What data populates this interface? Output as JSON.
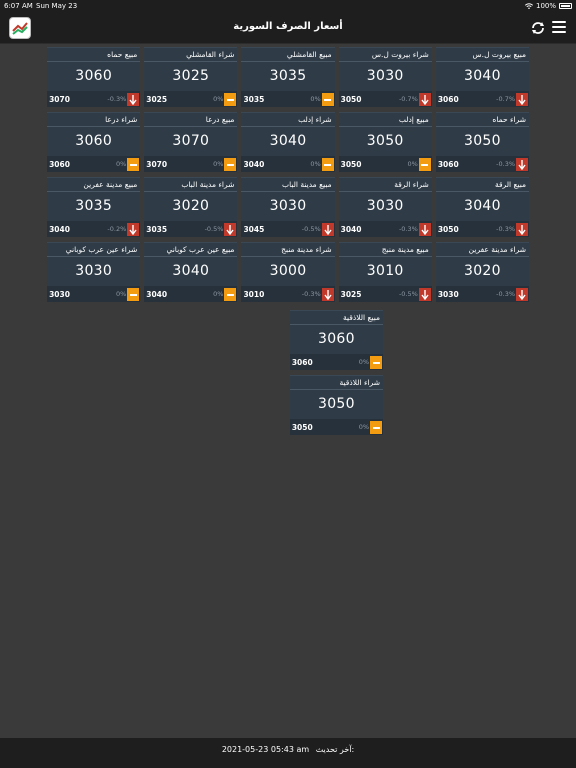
{
  "status": {
    "time": "6:07 AM",
    "date": "Sun May 23",
    "battery": "100%"
  },
  "nav": {
    "title": "أسعار الصرف السورية"
  },
  "colors": {
    "down": "#c0392b",
    "flat": "#f39c12",
    "card": "#2f3c48"
  },
  "icons": {
    "menu": "hamburger-menu-icon",
    "refresh": "refresh-icon",
    "logo": "app-logo-icon"
  },
  "cards": [
    {
      "label": "مبيع بيروت ل.س",
      "price": "3040",
      "old": "3060",
      "pct": "-0.7%",
      "trend": "down"
    },
    {
      "label": "شراء بيروت ل.س",
      "price": "3030",
      "old": "3050",
      "pct": "-0.7%",
      "trend": "down"
    },
    {
      "label": "مبيع القامشلي",
      "price": "3035",
      "old": "3035",
      "pct": "0%",
      "trend": "flat"
    },
    {
      "label": "شراء القامشلي",
      "price": "3025",
      "old": "3025",
      "pct": "0%",
      "trend": "flat"
    },
    {
      "label": "مبيع حماه",
      "price": "3060",
      "old": "3070",
      "pct": "-0.3%",
      "trend": "down"
    },
    {
      "label": "شراء حماه",
      "price": "3050",
      "old": "3060",
      "pct": "-0.3%",
      "trend": "down"
    },
    {
      "label": "مبيع إدلب",
      "price": "3050",
      "old": "3050",
      "pct": "0%",
      "trend": "flat"
    },
    {
      "label": "شراء إدلب",
      "price": "3040",
      "old": "3040",
      "pct": "0%",
      "trend": "flat"
    },
    {
      "label": "مبيع درعا",
      "price": "3070",
      "old": "3070",
      "pct": "0%",
      "trend": "flat"
    },
    {
      "label": "شراء درعا",
      "price": "3060",
      "old": "3060",
      "pct": "0%",
      "trend": "flat"
    },
    {
      "label": "مبيع الرقة",
      "price": "3040",
      "old": "3050",
      "pct": "-0.3%",
      "trend": "down"
    },
    {
      "label": "شراء الرقة",
      "price": "3030",
      "old": "3040",
      "pct": "-0.3%",
      "trend": "down"
    },
    {
      "label": "مبيع مدينة الباب",
      "price": "3030",
      "old": "3045",
      "pct": "-0.5%",
      "trend": "down"
    },
    {
      "label": "شراء مدينة الباب",
      "price": "3020",
      "old": "3035",
      "pct": "-0.5%",
      "trend": "down"
    },
    {
      "label": "مبيع مدينة عفرين",
      "price": "3035",
      "old": "3040",
      "pct": "-0.2%",
      "trend": "down"
    },
    {
      "label": "شراء مدينة عفرين",
      "price": "3020",
      "old": "3030",
      "pct": "-0.3%",
      "trend": "down"
    },
    {
      "label": "مبيع مدينة منبج",
      "price": "3010",
      "old": "3025",
      "pct": "-0.5%",
      "trend": "down"
    },
    {
      "label": "شراء مدينة منبج",
      "price": "3000",
      "old": "3010",
      "pct": "-0.3%",
      "trend": "down"
    },
    {
      "label": "مبيع عين عرب كوباني",
      "price": "3040",
      "old": "3040",
      "pct": "0%",
      "trend": "flat"
    },
    {
      "label": "شراء عين عرب كوباني",
      "price": "3030",
      "old": "3030",
      "pct": "0%",
      "trend": "flat"
    }
  ],
  "last_cards": [
    {
      "label": "مبيع اللاذقية",
      "price": "3060",
      "old": "3060",
      "pct": "0%",
      "trend": "flat"
    },
    {
      "label": "شراء اللاذقية",
      "price": "3050",
      "old": "3050",
      "pct": "0%",
      "trend": "flat"
    }
  ],
  "footer": {
    "label": "آخر تحديث:",
    "value": "2021-05-23 05:43 am"
  }
}
